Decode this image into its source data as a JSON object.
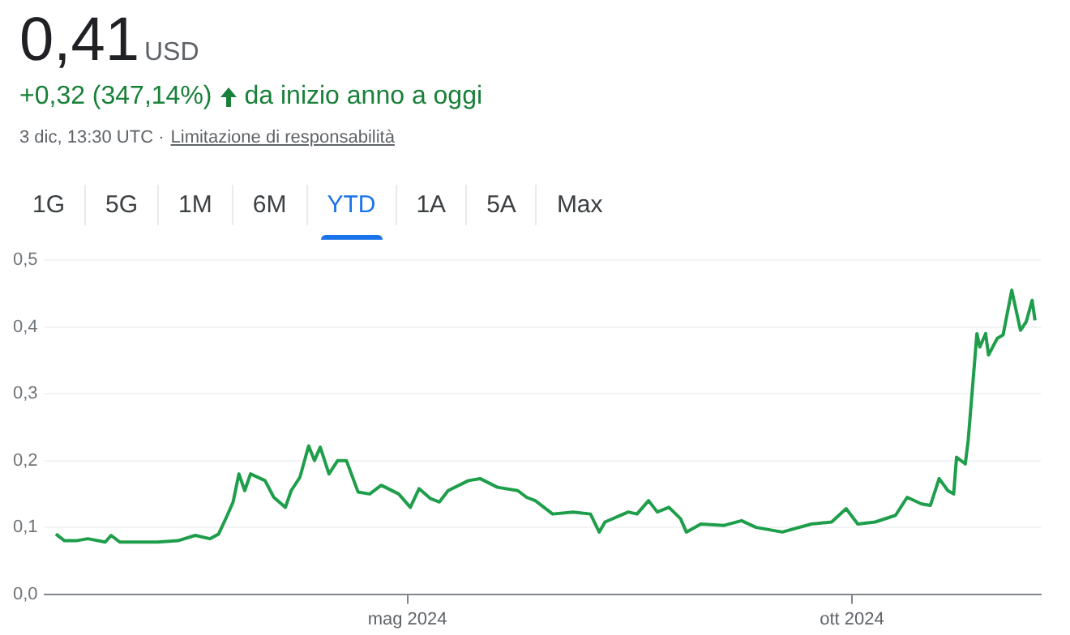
{
  "chart_data": {
    "type": "line",
    "title": "0,41",
    "annotations": [
      "USD",
      "+0,32 (347,14%)",
      "da inizio anno a oggi",
      "3 dic, 13:30 UTC ·",
      "Limitazione di responsabilità",
      "1G",
      "5G",
      "1M",
      "6M",
      "YTD",
      "1A",
      "5A",
      "Max"
    ],
    "x": [
      "2024-01-01",
      "2024-01-04",
      "2024-01-08",
      "2024-01-12",
      "2024-01-18",
      "2024-01-20",
      "2024-01-23",
      "2024-02-05",
      "2024-02-12",
      "2024-02-18",
      "2024-02-23",
      "2024-02-26",
      "2024-02-29",
      "2024-03-02",
      "2024-03-04",
      "2024-03-06",
      "2024-03-08",
      "2024-03-13",
      "2024-03-16",
      "2024-03-20",
      "2024-03-22",
      "2024-03-25",
      "2024-03-28",
      "2024-03-30",
      "2024-04-01",
      "2024-04-04",
      "2024-04-07",
      "2024-04-10",
      "2024-04-14",
      "2024-04-18",
      "2024-04-22",
      "2024-04-28",
      "2024-05-02",
      "2024-05-05",
      "2024-05-09",
      "2024-05-12",
      "2024-05-15",
      "2024-05-22",
      "2024-05-26",
      "2024-06-01",
      "2024-06-08",
      "2024-06-11",
      "2024-06-14",
      "2024-06-20",
      "2024-06-27",
      "2024-07-03",
      "2024-07-06",
      "2024-07-08",
      "2024-07-16",
      "2024-07-19",
      "2024-07-23",
      "2024-07-26",
      "2024-07-30",
      "2024-08-03",
      "2024-08-05",
      "2024-08-10",
      "2024-08-18",
      "2024-08-24",
      "2024-08-29",
      "2024-09-07",
      "2024-09-17",
      "2024-09-24",
      "2024-09-29",
      "2024-10-03",
      "2024-10-09",
      "2024-10-16",
      "2024-10-20",
      "2024-10-25",
      "2024-10-28",
      "2024-10-31",
      "2024-11-03",
      "2024-11-05",
      "2024-11-06",
      "2024-11-09",
      "2024-11-10",
      "2024-11-13",
      "2024-11-14",
      "2024-11-16",
      "2024-11-17",
      "2024-11-20",
      "2024-11-22",
      "2024-11-25",
      "2024-11-28",
      "2024-11-30",
      "2024-12-02",
      "2024-12-03"
    ],
    "series": [
      {
        "color": "#1e9e4a",
        "values": [
          0.09,
          0.08,
          0.08,
          0.083,
          0.078,
          0.088,
          0.078,
          0.078,
          0.08,
          0.088,
          0.083,
          0.09,
          0.118,
          0.138,
          0.18,
          0.155,
          0.18,
          0.17,
          0.145,
          0.13,
          0.155,
          0.175,
          0.222,
          0.2,
          0.22,
          0.18,
          0.2,
          0.2,
          0.153,
          0.15,
          0.163,
          0.15,
          0.13,
          0.158,
          0.143,
          0.138,
          0.155,
          0.17,
          0.173,
          0.16,
          0.155,
          0.145,
          0.14,
          0.12,
          0.123,
          0.12,
          0.093,
          0.108,
          0.123,
          0.12,
          0.14,
          0.123,
          0.13,
          0.113,
          0.093,
          0.105,
          0.103,
          0.11,
          0.1,
          0.093,
          0.105,
          0.108,
          0.128,
          0.105,
          0.108,
          0.118,
          0.145,
          0.135,
          0.133,
          0.173,
          0.155,
          0.15,
          0.205,
          0.195,
          0.23,
          0.39,
          0.37,
          0.39,
          0.358,
          0.383,
          0.388,
          0.455,
          0.395,
          0.408,
          0.44,
          0.41
        ]
      }
    ],
    "xlim": [
      "2023-12-28",
      "2024-12-05"
    ],
    "xticks": [
      {
        "value": "2024-05-01",
        "label": "mag 2024"
      },
      {
        "value": "2024-10-01",
        "label": "ott 2024"
      }
    ],
    "ylim": [
      0,
      0.5
    ],
    "yticks": [
      {
        "value": 0,
        "label": "0,0"
      },
      {
        "value": 0.1,
        "label": "0,1"
      },
      {
        "value": 0.2,
        "label": "0,2"
      },
      {
        "value": 0.3,
        "label": "0,3"
      },
      {
        "value": 0.4,
        "label": "0,4"
      },
      {
        "value": 0.5,
        "label": "0,5"
      }
    ],
    "grid": "y",
    "legend": false,
    "marker": "none",
    "line_style": "solid"
  }
}
